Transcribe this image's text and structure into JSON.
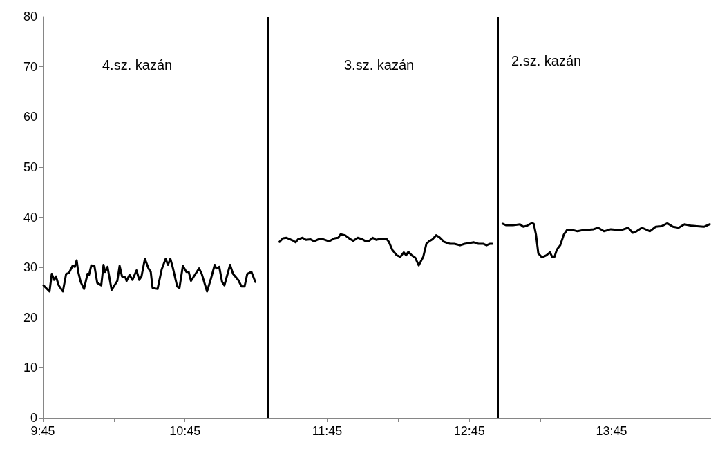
{
  "chart_data": {
    "type": "line",
    "xlim": [
      9.75,
      14.45
    ],
    "xticks": [
      {
        "value": 9.75,
        "label": "9:45"
      },
      {
        "value": 10.25,
        "label": null
      },
      {
        "value": 10.75,
        "label": "10:45"
      },
      {
        "value": 11.25,
        "label": null
      },
      {
        "value": 11.75,
        "label": "11:45"
      },
      {
        "value": 12.25,
        "label": null
      },
      {
        "value": 12.75,
        "label": "12:45"
      },
      {
        "value": 13.25,
        "label": null
      },
      {
        "value": 13.75,
        "label": "13:45"
      },
      {
        "value": 14.25,
        "label": null
      }
    ],
    "ylim": [
      0,
      80
    ],
    "yticks": [
      0,
      10,
      20,
      30,
      40,
      50,
      60,
      70,
      80
    ],
    "grid": false,
    "marker": "none",
    "line_style": "solid",
    "series": [
      {
        "color": "#000000",
        "x": [
          9.755,
          9.797,
          9.813,
          9.829,
          9.842,
          9.862,
          9.891,
          9.914,
          9.934,
          9.959,
          9.975,
          9.988,
          9.999,
          10.016,
          10.04,
          10.064,
          10.075,
          10.091,
          10.113,
          10.133,
          10.161,
          10.177,
          10.188,
          10.205,
          10.234,
          10.274,
          10.29,
          10.307,
          10.331,
          10.339,
          10.36,
          10.38,
          10.409,
          10.428,
          10.444,
          10.468,
          10.493,
          10.509,
          10.522,
          10.557,
          10.586,
          10.614,
          10.63,
          10.647,
          10.663,
          10.695,
          10.711,
          10.735,
          10.76,
          10.776,
          10.792,
          10.849,
          10.868,
          10.905,
          10.93,
          10.959,
          10.97,
          10.991,
          11.011,
          11.027,
          11.067,
          11.088,
          11.124,
          11.148,
          11.169,
          11.188,
          11.217,
          11.245
        ],
        "values": [
          26.4,
          25.2,
          28.7,
          27.5,
          28.2,
          26.4,
          25.2,
          28.7,
          28.9,
          30.3,
          30.1,
          31.4,
          29.1,
          27.1,
          25.7,
          28.7,
          28.5,
          30.4,
          30.3,
          26.9,
          26.4,
          30.5,
          29.1,
          30.1,
          25.5,
          27.3,
          30.3,
          28.2,
          28.0,
          27.3,
          28.5,
          27.5,
          29.4,
          27.5,
          28.2,
          31.7,
          29.8,
          29.1,
          25.9,
          25.7,
          29.6,
          31.7,
          30.5,
          31.7,
          30.1,
          26.2,
          25.9,
          30.3,
          29.1,
          29.1,
          27.3,
          29.8,
          28.7,
          25.2,
          27.5,
          30.5,
          29.8,
          30.1,
          27.1,
          26.4,
          30.5,
          28.7,
          27.5,
          26.2,
          26.2,
          28.7,
          29.1,
          27.1
        ]
      },
      {
        "color": "#000000",
        "x": [
          11.415,
          11.439,
          11.464,
          11.488,
          11.512,
          11.528,
          11.545,
          11.577,
          11.601,
          11.633,
          11.658,
          11.69,
          11.722,
          11.763,
          11.803,
          11.828,
          11.844,
          11.876,
          11.909,
          11.933,
          11.965,
          11.998,
          12.022,
          12.046,
          12.07,
          12.095,
          12.127,
          12.167,
          12.184,
          12.208,
          12.24,
          12.265,
          12.289,
          12.305,
          12.321,
          12.346,
          12.37,
          12.394,
          12.426,
          12.448,
          12.467,
          12.491,
          12.516,
          12.54,
          12.572,
          12.613,
          12.645,
          12.685,
          12.717,
          12.742,
          12.782,
          12.814,
          12.847,
          12.871,
          12.896,
          12.912
        ],
        "values": [
          35.1,
          35.8,
          35.9,
          35.6,
          35.3,
          35.0,
          35.6,
          35.9,
          35.5,
          35.6,
          35.2,
          35.6,
          35.6,
          35.2,
          35.8,
          35.9,
          36.6,
          36.4,
          35.7,
          35.3,
          35.9,
          35.6,
          35.2,
          35.3,
          35.9,
          35.5,
          35.7,
          35.7,
          35.1,
          33.5,
          32.4,
          32.1,
          33.0,
          32.4,
          33.1,
          32.4,
          31.9,
          30.4,
          32.1,
          34.7,
          35.2,
          35.6,
          36.4,
          36.0,
          35.1,
          34.7,
          34.7,
          34.4,
          34.7,
          34.8,
          35.0,
          34.7,
          34.7,
          34.4,
          34.7,
          34.7
        ]
      },
      {
        "color": "#000000",
        "x": [
          12.984,
          13.009,
          13.057,
          13.106,
          13.13,
          13.154,
          13.187,
          13.203,
          13.219,
          13.235,
          13.26,
          13.292,
          13.317,
          13.333,
          13.349,
          13.365,
          13.389,
          13.414,
          13.438,
          13.47,
          13.511,
          13.543,
          13.583,
          13.624,
          13.656,
          13.697,
          13.745,
          13.786,
          13.826,
          13.867,
          13.899,
          13.915,
          13.964,
          14.02,
          14.061,
          14.101,
          14.142,
          14.182,
          14.222,
          14.263,
          14.312,
          14.352,
          14.4,
          14.417,
          14.441
        ],
        "values": [
          38.7,
          38.4,
          38.4,
          38.6,
          38.1,
          38.3,
          38.8,
          38.7,
          36.5,
          32.8,
          32.0,
          32.4,
          33.0,
          32.1,
          32.1,
          33.5,
          34.4,
          36.5,
          37.5,
          37.5,
          37.2,
          37.4,
          37.5,
          37.6,
          37.9,
          37.2,
          37.6,
          37.5,
          37.5,
          37.9,
          36.9,
          37.0,
          37.9,
          37.2,
          38.1,
          38.2,
          38.8,
          38.1,
          37.9,
          38.6,
          38.3,
          38.2,
          38.1,
          38.3,
          38.6
        ]
      }
    ],
    "ref_lines": [
      {
        "axis": "x",
        "value": 11.333,
        "color": "#000000"
      },
      {
        "axis": "x",
        "value": 12.954,
        "color": "#000000"
      }
    ],
    "annotations": [
      "4.sz. kazán",
      "3.sz. kazán",
      "2.sz. kazán"
    ]
  }
}
